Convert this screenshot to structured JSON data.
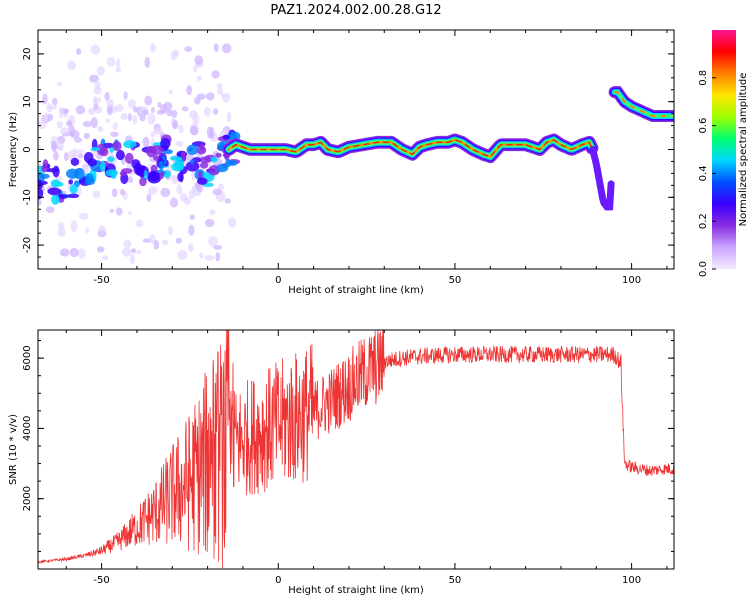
{
  "title": "PAZ1.2024.002.00.28.G12",
  "chart_data": [
    {
      "type": "heatmap",
      "xlabel": "Height of straight line (km)",
      "ylabel": "Frequency (Hz)",
      "xlim": [
        -68,
        112
      ],
      "ylim": [
        -25,
        25
      ],
      "xticks": [
        -50,
        0,
        50,
        100
      ],
      "yticks": [
        -20,
        -10,
        0,
        10,
        20
      ],
      "colorbar": {
        "label": "Normalized spectral amplitude",
        "range": [
          0,
          1
        ],
        "ticks": [
          0.0,
          0.2,
          0.4,
          0.6,
          0.8
        ],
        "colors": [
          "#f4eaff",
          "#c9a6ff",
          "#8a2be2",
          "#3a00ff",
          "#0050ff",
          "#00d8ff",
          "#00ff70",
          "#a0ff00",
          "#ffe600",
          "#ff8000",
          "#ff0000",
          "#ff1493"
        ]
      },
      "ridge": {
        "x": [
          -65,
          -60,
          -55,
          -52,
          -48,
          -44,
          -40,
          -36,
          -32,
          -28,
          -24,
          -20,
          -17,
          -14,
          -12,
          -10,
          -8,
          -5,
          -2,
          0,
          2,
          5,
          8,
          10,
          12,
          14,
          17,
          20,
          24,
          28,
          30,
          32,
          35,
          38,
          40,
          42,
          45,
          48,
          50,
          52,
          55,
          58,
          60,
          63,
          66,
          70,
          74,
          76,
          78,
          80,
          83,
          86,
          88,
          89,
          90,
          91,
          92,
          93,
          94,
          95,
          96,
          97,
          98,
          100,
          103,
          106,
          110
        ],
        "y": [
          -7,
          -8,
          -4,
          -2,
          -1,
          -3,
          -2,
          -4,
          -1,
          -5,
          -2,
          -4,
          0,
          0,
          1,
          0.5,
          0,
          0,
          0,
          0,
          0,
          -0.5,
          1,
          1,
          1.5,
          0,
          -0.5,
          0.5,
          1,
          1.5,
          1.5,
          1.5,
          0,
          -1,
          0.5,
          1,
          1.5,
          1.5,
          2,
          1.5,
          0,
          -1,
          -1.5,
          1,
          1,
          1,
          0,
          1.5,
          2,
          1,
          0,
          1,
          1.5,
          0,
          -3,
          -7,
          -11,
          -12,
          -12,
          12,
          12,
          11,
          10,
          9,
          8,
          7,
          7
        ]
      }
    },
    {
      "type": "line",
      "xlabel": "Height of straight line (km)",
      "ylabel": "SNR (10 * v/v)",
      "xlim": [
        -68,
        112
      ],
      "ylim": [
        0,
        6800
      ],
      "xticks": [
        -50,
        0,
        50,
        100
      ],
      "yticks": [
        2000,
        4000,
        6000
      ],
      "series_color": "#ee3333",
      "envelope": {
        "x": [
          -68,
          -60,
          -55,
          -50,
          -45,
          -40,
          -35,
          -30,
          -25,
          -20,
          -15,
          -10,
          -5,
          0,
          5,
          10,
          15,
          20,
          25,
          30,
          35,
          40,
          50,
          60,
          70,
          80,
          90,
          95,
          96,
          97,
          98,
          100,
          105,
          110,
          112
        ],
        "y": [
          200,
          280,
          380,
          520,
          800,
          1200,
          1600,
          2100,
          2500,
          3000,
          3400,
          3700,
          3900,
          4100,
          4300,
          4500,
          4800,
          5200,
          5600,
          5900,
          6000,
          6050,
          6100,
          6100,
          6100,
          6100,
          6100,
          6100,
          6000,
          5800,
          3000,
          2900,
          2800,
          2850,
          2850
        ]
      }
    }
  ]
}
